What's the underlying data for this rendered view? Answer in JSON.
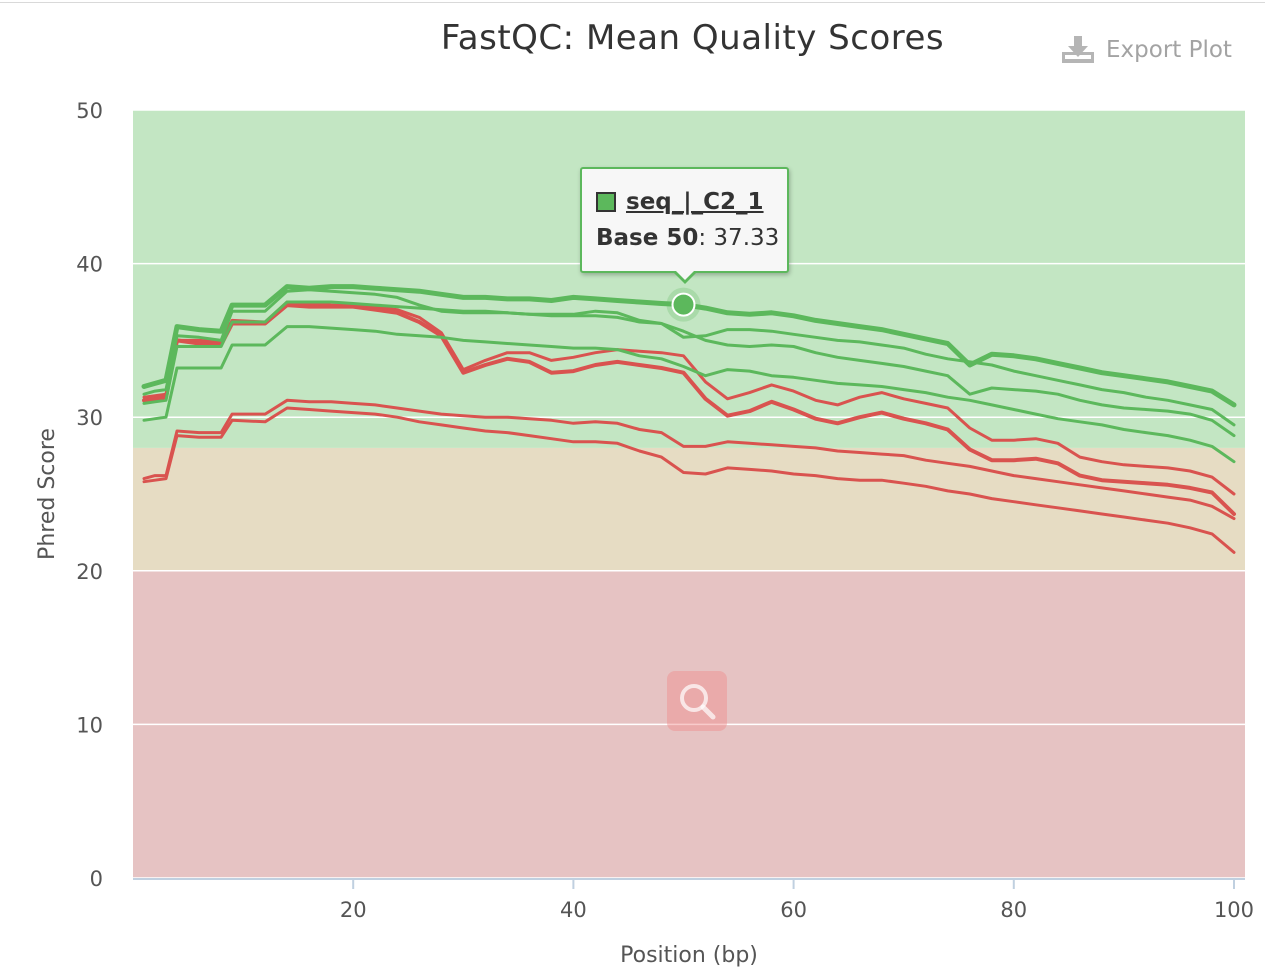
{
  "header": {
    "title": "FastQC: Mean Quality Scores",
    "export_label": "Export Plot",
    "export_icon": "download-icon"
  },
  "tooltip": {
    "series": "seq_|_C2_1",
    "label": "Base 50",
    "sep": ": ",
    "value": "37.33",
    "swatch_color": "#5cb85c"
  },
  "zoom_icon": "magnifier-icon",
  "chart_data": {
    "type": "line",
    "title": "FastQC: Mean Quality Scores",
    "xlabel": "Position (bp)",
    "ylabel": "Phred Score",
    "xlim": [
      0,
      101
    ],
    "ylim": [
      0,
      50
    ],
    "xticks": [
      20,
      40,
      60,
      80,
      100
    ],
    "yticks": [
      0,
      10,
      20,
      30,
      40,
      50
    ],
    "grid": true,
    "bands": [
      {
        "from": 0,
        "to": 20,
        "color": "#e6c3c3"
      },
      {
        "from": 20,
        "to": 28,
        "color": "#e6dcc3"
      },
      {
        "from": 28,
        "to": 50,
        "color": "#c3e6c3"
      }
    ],
    "colors": {
      "pass": "#5cb85c",
      "fail": "#d9534f"
    },
    "x": [
      1,
      2,
      3,
      4,
      6,
      8,
      9,
      12,
      14,
      16,
      18,
      20,
      22,
      24,
      26,
      28,
      30,
      32,
      34,
      36,
      38,
      40,
      42,
      44,
      46,
      48,
      50,
      52,
      54,
      56,
      58,
      60,
      62,
      64,
      66,
      68,
      70,
      72,
      74,
      76,
      78,
      80,
      82,
      84,
      86,
      88,
      90,
      92,
      94,
      96,
      98,
      100
    ],
    "highlight": {
      "x": 50,
      "y": 37.33,
      "series": "seq_|_C2_1"
    },
    "series": [
      {
        "name": "seq_|_C2_1",
        "status": "pass",
        "width": 5,
        "values": [
          32.0,
          32.2,
          32.4,
          35.9,
          35.7,
          35.6,
          37.3,
          37.3,
          38.5,
          38.4,
          38.5,
          38.5,
          38.4,
          38.3,
          38.2,
          38.0,
          37.8,
          37.8,
          37.7,
          37.7,
          37.6,
          37.8,
          37.7,
          37.6,
          37.5,
          37.4,
          37.33,
          37.1,
          36.8,
          36.7,
          36.8,
          36.6,
          36.3,
          36.1,
          35.9,
          35.7,
          35.4,
          35.1,
          34.8,
          33.4,
          34.1,
          34.0,
          33.8,
          33.5,
          33.2,
          32.9,
          32.7,
          32.5,
          32.3,
          32.0,
          31.7,
          30.8
        ]
      },
      {
        "name": "",
        "status": "pass",
        "width": 3,
        "values": [
          31.5,
          31.7,
          31.8,
          35.3,
          35.2,
          35.0,
          36.9,
          36.9,
          38.2,
          38.3,
          38.2,
          38.1,
          38.0,
          37.8,
          37.3,
          36.9,
          36.8,
          36.8,
          36.8,
          36.7,
          36.7,
          36.7,
          36.9,
          36.8,
          36.3,
          36.1,
          35.2,
          35.3,
          35.7,
          35.7,
          35.6,
          35.4,
          35.2,
          35.0,
          34.9,
          34.7,
          34.5,
          34.1,
          33.8,
          33.6,
          33.4,
          33.0,
          32.7,
          32.4,
          32.1,
          31.8,
          31.6,
          31.3,
          31.1,
          30.8,
          30.5,
          29.5
        ]
      },
      {
        "name": "",
        "status": "pass",
        "width": 3,
        "values": [
          30.9,
          31.0,
          31.1,
          34.6,
          34.6,
          34.6,
          36.2,
          36.2,
          37.5,
          37.5,
          37.5,
          37.4,
          37.3,
          37.2,
          37.1,
          37.0,
          36.9,
          36.9,
          36.8,
          36.7,
          36.6,
          36.6,
          36.6,
          36.5,
          36.2,
          36.1,
          35.6,
          35.0,
          34.7,
          34.6,
          34.7,
          34.6,
          34.2,
          33.9,
          33.7,
          33.5,
          33.3,
          33.0,
          32.7,
          31.5,
          31.9,
          31.8,
          31.7,
          31.5,
          31.1,
          30.8,
          30.6,
          30.5,
          30.4,
          30.2,
          29.8,
          28.8
        ]
      },
      {
        "name": "",
        "status": "pass",
        "width": 3,
        "values": [
          29.8,
          29.9,
          30.0,
          33.2,
          33.2,
          33.2,
          34.7,
          34.7,
          35.9,
          35.9,
          35.8,
          35.7,
          35.6,
          35.4,
          35.3,
          35.2,
          35.0,
          34.9,
          34.8,
          34.7,
          34.6,
          34.5,
          34.5,
          34.4,
          34.0,
          33.8,
          33.3,
          32.7,
          33.1,
          33.0,
          32.7,
          32.6,
          32.4,
          32.2,
          32.1,
          32.0,
          31.8,
          31.6,
          31.3,
          31.1,
          30.8,
          30.5,
          30.2,
          29.9,
          29.7,
          29.5,
          29.2,
          29.0,
          28.8,
          28.5,
          28.1,
          27.1
        ]
      },
      {
        "name": "",
        "status": "fail",
        "width": 4,
        "values": [
          31.1,
          31.2,
          31.3,
          35.0,
          34.8,
          34.7,
          36.1,
          36.1,
          37.3,
          37.2,
          37.2,
          37.2,
          37.0,
          36.8,
          36.2,
          35.3,
          32.9,
          33.4,
          33.8,
          33.6,
          32.9,
          33.0,
          33.4,
          33.6,
          33.4,
          33.2,
          32.9,
          31.2,
          30.1,
          30.4,
          31.0,
          30.5,
          29.9,
          29.6,
          30.0,
          30.3,
          29.9,
          29.6,
          29.2,
          27.9,
          27.2,
          27.2,
          27.3,
          27.0,
          26.2,
          25.9,
          25.8,
          25.7,
          25.6,
          25.4,
          25.1,
          23.7
        ]
      },
      {
        "name": "",
        "status": "fail",
        "width": 3,
        "values": [
          31.3,
          31.4,
          31.5,
          35.0,
          35.0,
          34.9,
          36.3,
          36.2,
          37.5,
          37.4,
          37.3,
          37.3,
          37.2,
          37.0,
          36.5,
          35.5,
          33.1,
          33.7,
          34.2,
          34.2,
          33.7,
          33.9,
          34.2,
          34.4,
          34.3,
          34.2,
          34.0,
          32.3,
          31.2,
          31.6,
          32.1,
          31.7,
          31.1,
          30.8,
          31.3,
          31.6,
          31.2,
          30.9,
          30.6,
          29.3,
          28.5,
          28.5,
          28.6,
          28.3,
          27.4,
          27.1,
          26.9,
          26.8,
          26.7,
          26.5,
          26.1,
          25.0
        ]
      },
      {
        "name": "",
        "status": "fail",
        "width": 3,
        "values": [
          26.0,
          26.2,
          26.2,
          29.1,
          29.0,
          29.0,
          30.2,
          30.2,
          31.1,
          31.0,
          31.0,
          30.9,
          30.8,
          30.6,
          30.4,
          30.2,
          30.1,
          30.0,
          30.0,
          29.9,
          29.8,
          29.6,
          29.7,
          29.6,
          29.2,
          29.0,
          28.1,
          28.1,
          28.4,
          28.3,
          28.2,
          28.1,
          28.0,
          27.8,
          27.7,
          27.6,
          27.5,
          27.2,
          27.0,
          26.8,
          26.5,
          26.2,
          26.0,
          25.8,
          25.6,
          25.4,
          25.2,
          25.0,
          24.8,
          24.6,
          24.2,
          23.4
        ]
      },
      {
        "name": "",
        "status": "fail",
        "width": 3,
        "values": [
          25.8,
          25.9,
          26.0,
          28.8,
          28.7,
          28.7,
          29.8,
          29.7,
          30.6,
          30.5,
          30.4,
          30.3,
          30.2,
          30.0,
          29.7,
          29.5,
          29.3,
          29.1,
          29.0,
          28.8,
          28.6,
          28.4,
          28.4,
          28.3,
          27.8,
          27.4,
          26.4,
          26.3,
          26.7,
          26.6,
          26.5,
          26.3,
          26.2,
          26.0,
          25.9,
          25.9,
          25.7,
          25.5,
          25.2,
          25.0,
          24.7,
          24.5,
          24.3,
          24.1,
          23.9,
          23.7,
          23.5,
          23.3,
          23.1,
          22.8,
          22.4,
          21.2
        ]
      }
    ]
  }
}
